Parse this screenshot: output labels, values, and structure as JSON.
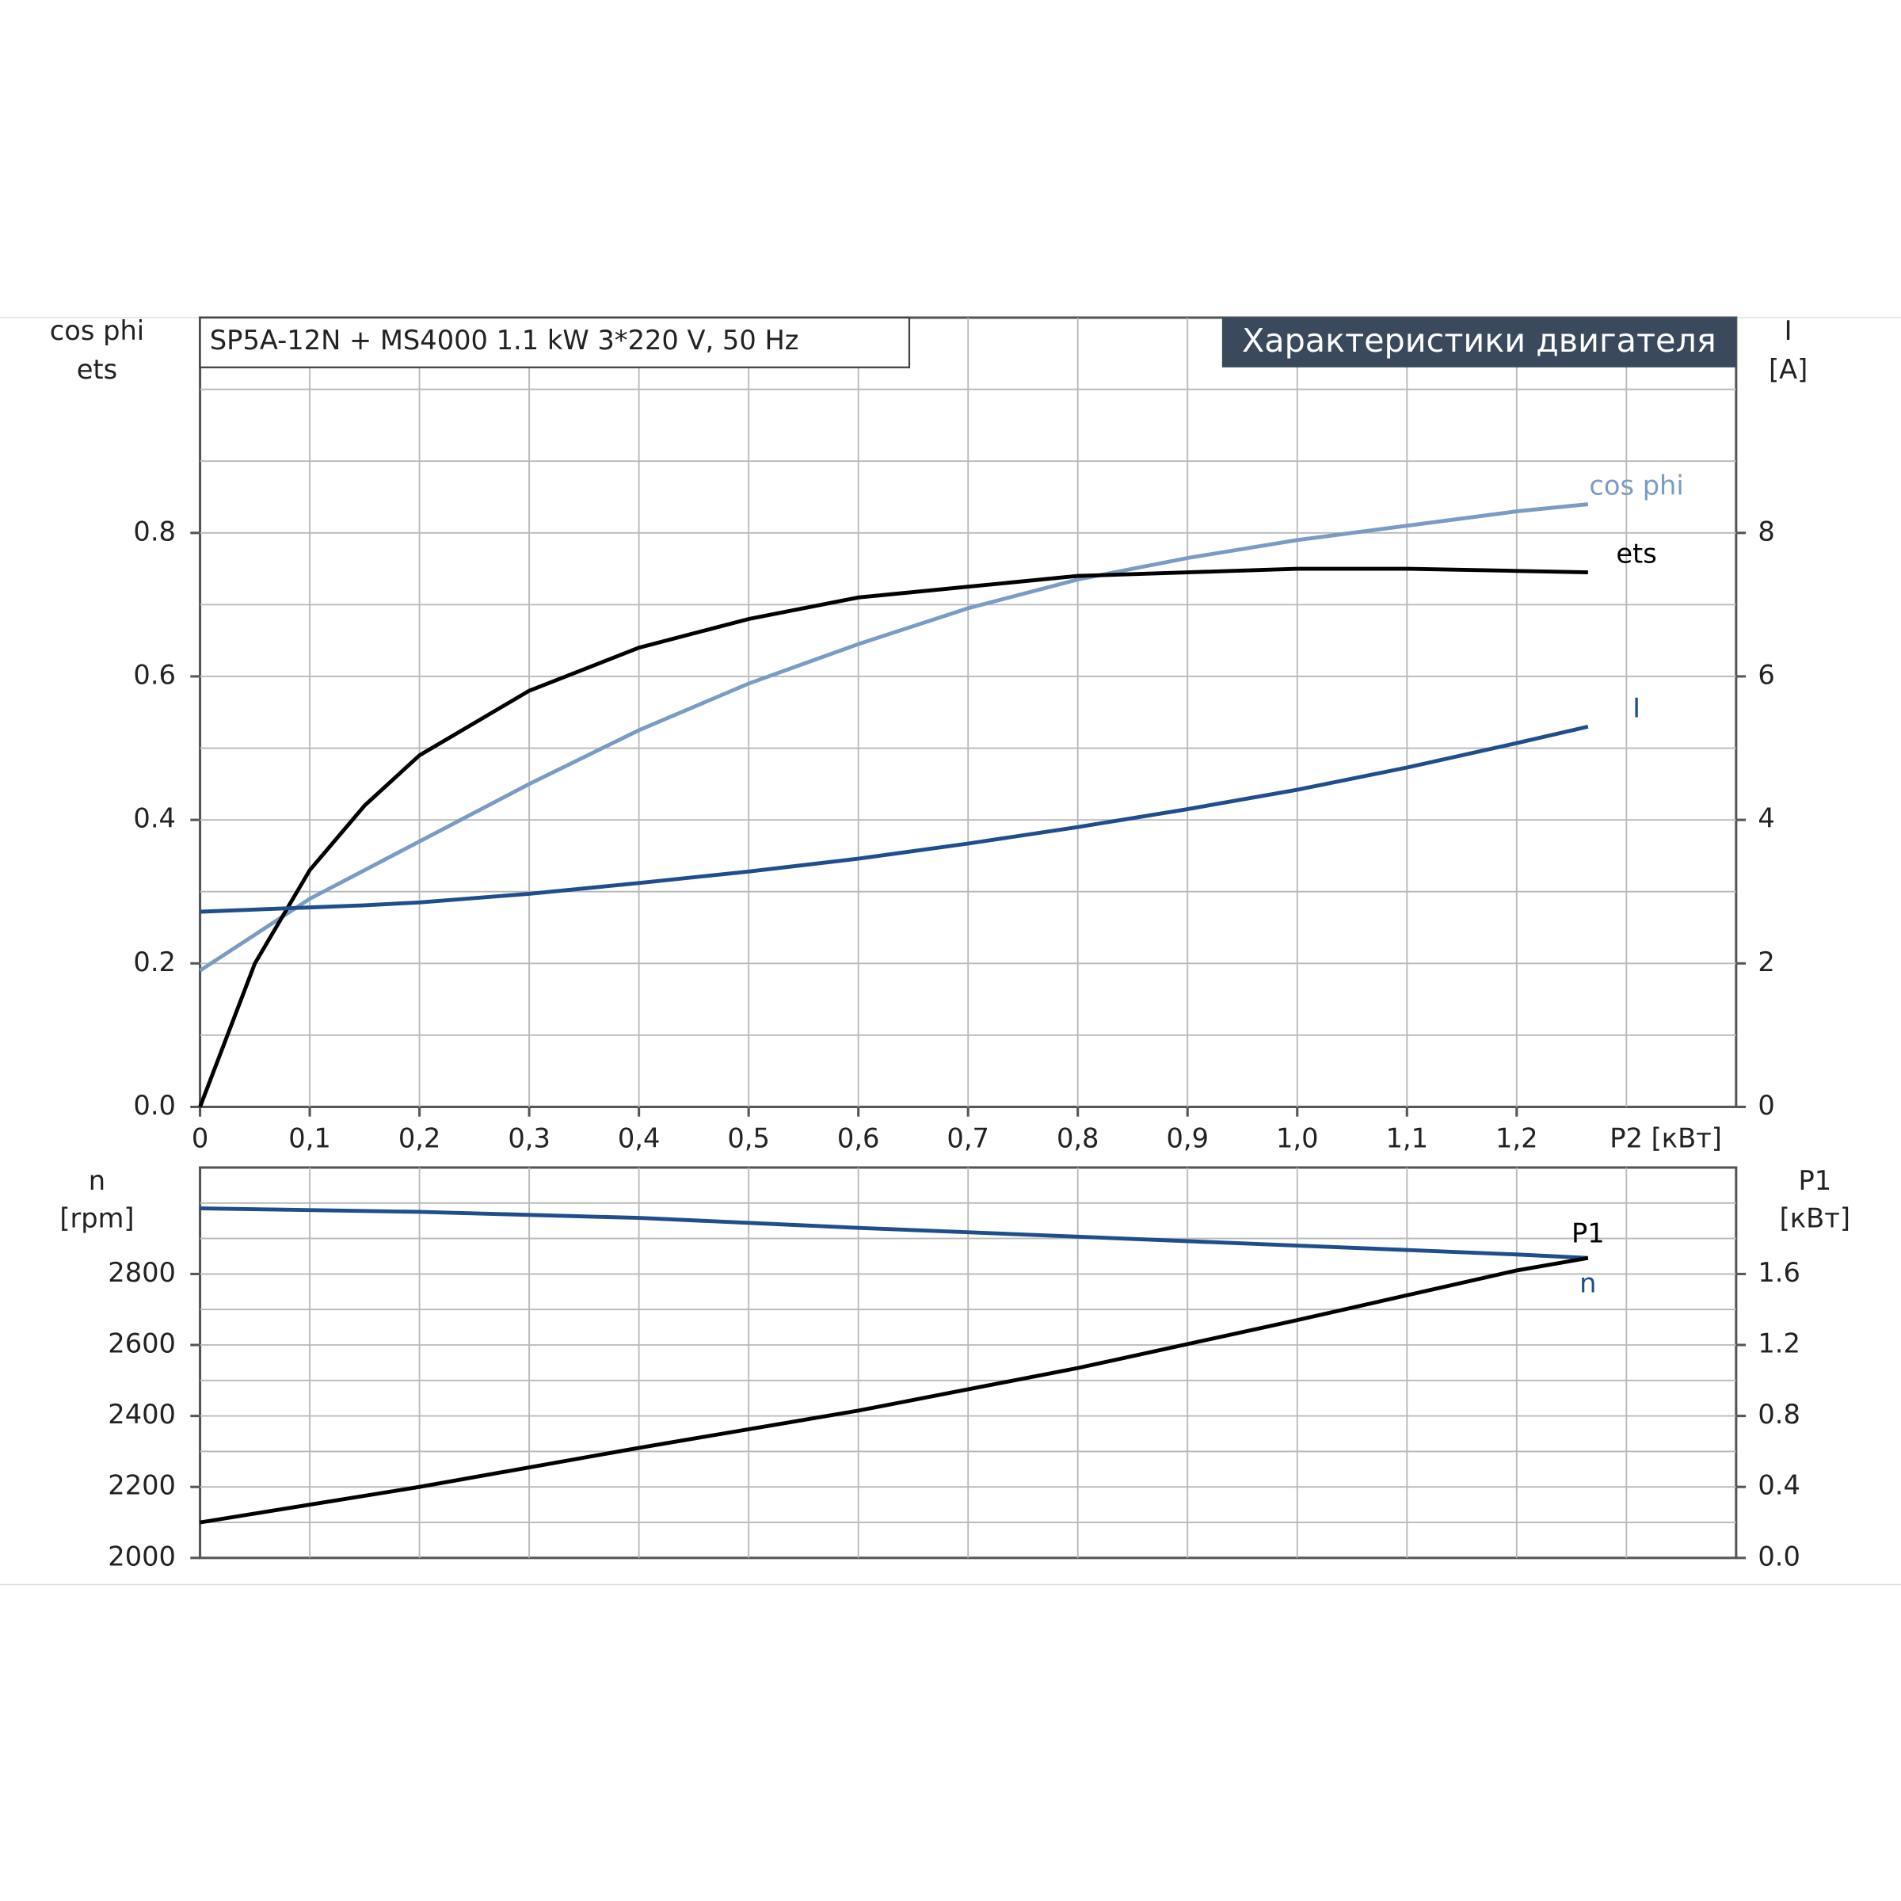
{
  "chart_data": [
    {
      "type": "line",
      "title": "Характеристики двигателя",
      "subtitle": "SP5A-12N + MS4000   1.1 kW   3*220 V, 50 Hz",
      "ylabel": [
        "cos phi",
        "ets"
      ],
      "y2label": [
        "I",
        "[A]"
      ],
      "xlabel": "P2 [кВт]",
      "x": [
        0,
        0.05,
        0.1,
        0.15,
        0.2,
        0.3,
        0.4,
        0.5,
        0.6,
        0.7,
        0.8,
        0.9,
        1.0,
        1.1,
        1.2,
        1.265
      ],
      "xlim": [
        0,
        1.4
      ],
      "xticks": [
        0,
        {
          "value": 0.1,
          "label": "0,1"
        },
        {
          "value": 0.2,
          "label": "0,2"
        },
        {
          "value": 0.3,
          "label": "0,3"
        },
        {
          "value": 0.4,
          "label": "0,4"
        },
        {
          "value": 0.5,
          "label": "0,5"
        },
        {
          "value": 0.6,
          "label": "0,6"
        },
        {
          "value": 0.7,
          "label": "0,7"
        },
        {
          "value": 0.8,
          "label": "0,8"
        },
        {
          "value": 0.9,
          "label": "0,9"
        },
        {
          "value": 1.0,
          "label": "1,0"
        },
        {
          "value": 1.1,
          "label": "1,1"
        },
        {
          "value": 1.2,
          "label": "1,2"
        }
      ],
      "xgrid": [
        0.1,
        0.2,
        0.3,
        0.4,
        0.5,
        0.6,
        0.7,
        0.8,
        0.9,
        1.0,
        1.1,
        1.2,
        1.3
      ],
      "ylim": [
        0,
        1.1
      ],
      "yticks": [
        {
          "value": 0,
          "label": "0.0"
        },
        0.2,
        0.4,
        0.6,
        0.8
      ],
      "ygrid": [
        0.1,
        0.2,
        0.3,
        0.4,
        0.5,
        0.6,
        0.7,
        0.8,
        0.9,
        1.0
      ],
      "y2lim": [
        0,
        11
      ],
      "y2ticks": [
        0,
        2,
        4,
        6,
        8
      ],
      "grid": true,
      "series": [
        {
          "name": "cos phi",
          "color": "#7a9cc4",
          "values": [
            0.19,
            0.24,
            0.29,
            0.33,
            0.37,
            0.45,
            0.525,
            0.59,
            0.645,
            0.695,
            0.735,
            0.765,
            0.79,
            0.81,
            0.83,
            0.84
          ]
        },
        {
          "name": "ets",
          "color": "#000000",
          "values": [
            0,
            0.2,
            0.33,
            0.42,
            0.49,
            0.58,
            0.64,
            0.68,
            0.71,
            0.725,
            0.74,
            0.745,
            0.75,
            0.75,
            0.747,
            0.745
          ]
        },
        {
          "name": "I",
          "color": "#1f4e8c",
          "axis": "y2",
          "values": [
            2.72,
            2.75,
            2.78,
            2.81,
            2.85,
            2.97,
            3.12,
            3.28,
            3.46,
            3.67,
            3.9,
            4.15,
            4.42,
            4.73,
            5.07,
            5.3
          ]
        }
      ]
    },
    {
      "type": "line",
      "ylabel": [
        "n",
        "[rpm]"
      ],
      "y2label": [
        "P1",
        "[кВт]"
      ],
      "x": [
        0,
        0.2,
        0.4,
        0.6,
        0.8,
        1.0,
        1.2,
        1.265
      ],
      "xlim": [
        0,
        1.4
      ],
      "xgrid": [
        0.1,
        0.2,
        0.3,
        0.4,
        0.5,
        0.6,
        0.7,
        0.8,
        0.9,
        1.0,
        1.1,
        1.2,
        1.3
      ],
      "ylim": [
        2000,
        3100
      ],
      "yticks": [
        2000,
        2200,
        2400,
        2600,
        2800
      ],
      "ygrid": [
        2100,
        2200,
        2300,
        2400,
        2500,
        2600,
        2700,
        2800,
        2900,
        3000
      ],
      "y2lim": [
        0,
        2.2
      ],
      "y2ticks": [
        {
          "value": 0,
          "label": "0.0"
        },
        0.4,
        0.8,
        1.2,
        1.6
      ],
      "grid": true,
      "series": [
        {
          "name": "n",
          "color": "#1f4e8c",
          "values": [
            2985,
            2975,
            2958,
            2930,
            2905,
            2880,
            2855,
            2845
          ]
        },
        {
          "name": "P1",
          "color": "#000000",
          "axis": "y2",
          "values": [
            0.2,
            0.4,
            0.62,
            0.83,
            1.07,
            1.34,
            1.62,
            1.69
          ]
        }
      ]
    }
  ]
}
